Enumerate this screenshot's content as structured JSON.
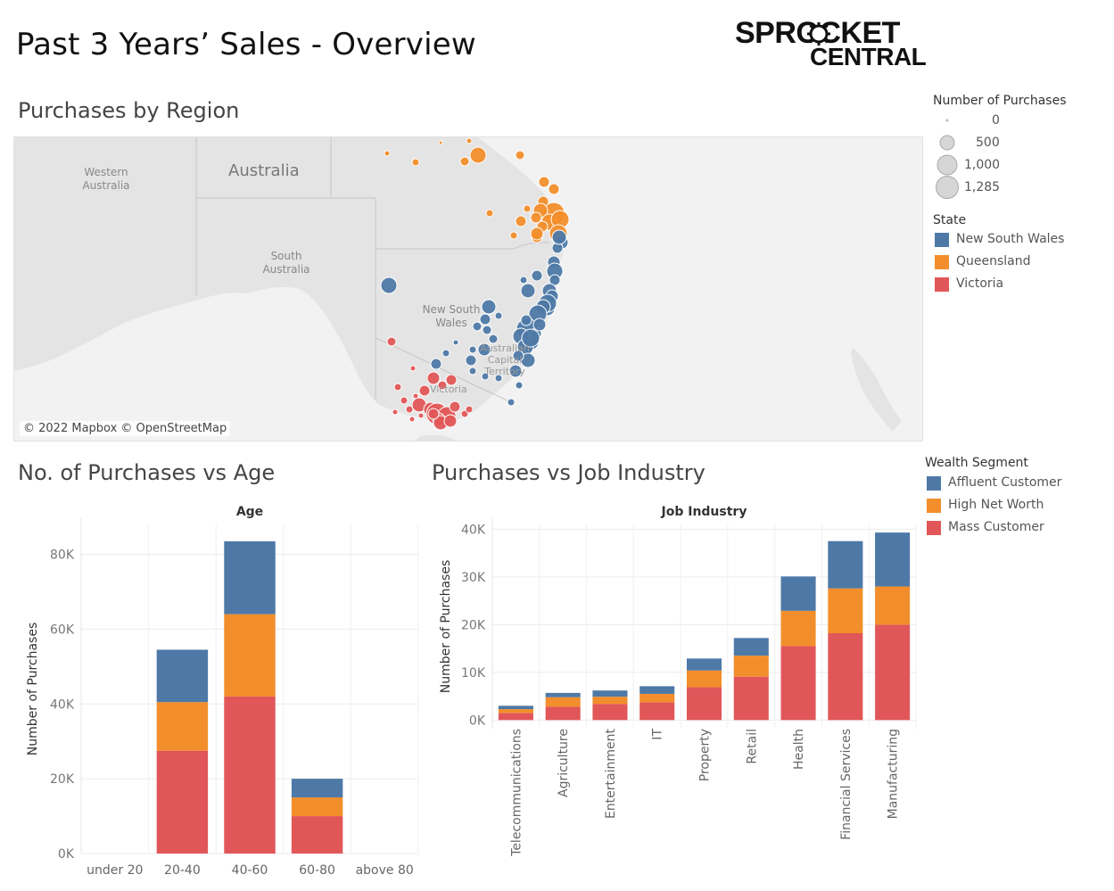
{
  "header": {
    "title": "Past 3 Years’ Sales - Overview",
    "logo_line1": "SPROCKET",
    "logo_line2": "CENTRAL"
  },
  "map": {
    "title": "Purchases by Region",
    "labels": {
      "western_australia": "Western Australia",
      "australia": "Australia",
      "south_australia": "South Australia",
      "nsw": "New South Wales",
      "act": "Australian Capital Territory",
      "victoria": "Victoria"
    },
    "attribution": "© 2022 Mapbox © OpenStreetMap",
    "colors": {
      "land": "#e6e6e6",
      "sea": "#f2f2f2",
      "border": "#c8c8c8"
    }
  },
  "legend_size": {
    "title": "Number of Purchases",
    "items": [
      "0",
      "500",
      "1,000",
      "1,285"
    ]
  },
  "legend_state": {
    "title": "State",
    "items": [
      {
        "label": "New South Wales",
        "color": "#4e79a7"
      },
      {
        "label": "Queensland",
        "color": "#f28e2b"
      },
      {
        "label": "Victoria",
        "color": "#e15759"
      }
    ]
  },
  "legend_wealth": {
    "title": "Wealth Segment",
    "items": [
      {
        "label": "Affluent Customer",
        "color": "#4e79a7"
      },
      {
        "label": "High Net Worth",
        "color": "#f28e2b"
      },
      {
        "label": "Mass Customer",
        "color": "#e15759"
      }
    ]
  },
  "age_section": {
    "title": "No. of Purchases vs Age"
  },
  "job_section": {
    "title": "Purchases vs Job Industry"
  },
  "chart_data": [
    {
      "type": "bar",
      "stacked": true,
      "title": "Age",
      "xlabel": "",
      "ylabel": "Number of Purchases",
      "categories": [
        "under 20",
        "20-40",
        "40-60",
        "60-80",
        "above 80"
      ],
      "ylim": [
        0,
        88000
      ],
      "yticks": [
        "0K",
        "20K",
        "40K",
        "60K",
        "80K"
      ],
      "ytick_values": [
        0,
        20000,
        40000,
        60000,
        80000
      ],
      "series": [
        {
          "name": "Mass Customer",
          "color": "#e15759",
          "values": [
            0,
            27500,
            42000,
            10000,
            0
          ]
        },
        {
          "name": "High Net Worth",
          "color": "#f28e2b",
          "values": [
            0,
            13000,
            22000,
            5000,
            0
          ]
        },
        {
          "name": "Affluent Customer",
          "color": "#4e79a7",
          "values": [
            0,
            14000,
            19500,
            5000,
            0
          ]
        }
      ]
    },
    {
      "type": "bar",
      "stacked": true,
      "title": "Job Industry",
      "xlabel": "",
      "ylabel": "Number of Purchases",
      "categories": [
        "Telecommunications",
        "Agriculture",
        "Entertainment",
        "IT",
        "Property",
        "Retail",
        "Health",
        "Financial Services",
        "Manufacturing"
      ],
      "ylim": [
        -1800,
        41000
      ],
      "yticks": [
        "0K",
        "10K",
        "20K",
        "30K",
        "40K"
      ],
      "ytick_values": [
        0,
        10000,
        20000,
        30000,
        40000
      ],
      "series": [
        {
          "name": "Mass Customer",
          "color": "#e15759",
          "values": [
            1500,
            2800,
            3400,
            3700,
            6900,
            9100,
            15500,
            18200,
            20000
          ]
        },
        {
          "name": "High Net Worth",
          "color": "#f28e2b",
          "values": [
            800,
            2000,
            1500,
            1800,
            3500,
            4400,
            7400,
            9400,
            8000
          ]
        },
        {
          "name": "Affluent Customer",
          "color": "#4e79a7",
          "values": [
            700,
            900,
            1300,
            1600,
            2500,
            3700,
            7200,
            9900,
            11300
          ]
        }
      ]
    }
  ]
}
